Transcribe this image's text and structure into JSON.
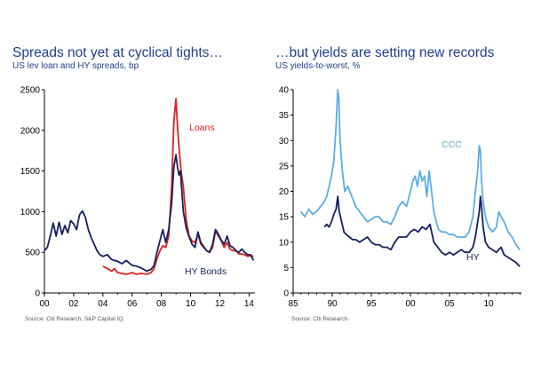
{
  "chart_data": [
    {
      "type": "line",
      "title": "Spreads not yet at cyclical tights…",
      "subtitle": "US lev loan and HY spreads, bp",
      "source": "Source: Citi Research, S&P Capital IQ.",
      "xlabel": "",
      "ylabel": "",
      "x_ticks": [
        "00",
        "02",
        "04",
        "06",
        "08",
        "10",
        "12",
        "14"
      ],
      "x_tick_values": [
        2000,
        2002,
        2004,
        2006,
        2008,
        2010,
        2012,
        2014
      ],
      "xlim": [
        2000,
        2014.4
      ],
      "y_ticks": [
        "0",
        "500",
        "1000",
        "1500",
        "2000",
        "2500"
      ],
      "y_tick_values": [
        0,
        500,
        1000,
        1500,
        2000,
        2500
      ],
      "ylim": [
        0,
        2500
      ],
      "grid": false,
      "legend": "inline labels",
      "series": [
        {
          "name": "HY Bonds",
          "color": "#14205e",
          "x": [
            2000.0,
            2000.2,
            2000.4,
            2000.6,
            2000.8,
            2001.0,
            2001.2,
            2001.4,
            2001.6,
            2001.8,
            2002.0,
            2002.2,
            2002.4,
            2002.6,
            2002.8,
            2003.0,
            2003.2,
            2003.4,
            2003.6,
            2003.8,
            2004.0,
            2004.3,
            2004.6,
            2005.0,
            2005.3,
            2005.6,
            2006.0,
            2006.3,
            2006.6,
            2007.0,
            2007.3,
            2007.5,
            2007.7,
            2007.9,
            2008.1,
            2008.3,
            2008.5,
            2008.7,
            2008.85,
            2009.0,
            2009.1,
            2009.2,
            2009.3,
            2009.5,
            2009.7,
            2009.9,
            2010.1,
            2010.3,
            2010.5,
            2010.7,
            2010.9,
            2011.1,
            2011.3,
            2011.5,
            2011.7,
            2011.9,
            2012.1,
            2012.3,
            2012.5,
            2012.7,
            2012.9,
            2013.1,
            2013.3,
            2013.5,
            2013.7,
            2013.9,
            2014.1,
            2014.3
          ],
          "values": [
            520,
            560,
            700,
            860,
            700,
            870,
            720,
            830,
            740,
            890,
            850,
            780,
            960,
            1010,
            930,
            780,
            680,
            600,
            520,
            470,
            450,
            470,
            410,
            390,
            360,
            400,
            340,
            330,
            310,
            270,
            290,
            340,
            500,
            640,
            780,
            620,
            780,
            1100,
            1550,
            1700,
            1550,
            1450,
            1500,
            1000,
            800,
            690,
            600,
            560,
            750,
            620,
            570,
            520,
            500,
            600,
            780,
            720,
            650,
            600,
            700,
            580,
            560,
            520,
            500,
            540,
            500,
            470,
            470,
            400
          ]
        },
        {
          "name": "Loans",
          "color": "#e0201c",
          "x": [
            2004.0,
            2004.2,
            2004.4,
            2004.6,
            2004.8,
            2005.0,
            2005.3,
            2005.6,
            2006.0,
            2006.3,
            2006.6,
            2007.0,
            2007.3,
            2007.5,
            2007.7,
            2007.9,
            2008.1,
            2008.3,
            2008.5,
            2008.7,
            2008.85,
            2009.0,
            2009.1,
            2009.2,
            2009.35,
            2009.5,
            2009.7,
            2009.9,
            2010.1,
            2010.3,
            2010.5,
            2010.7,
            2010.9,
            2011.1,
            2011.3,
            2011.5,
            2011.7,
            2011.9,
            2012.1,
            2012.3,
            2012.5,
            2012.7,
            2012.9,
            2013.1,
            2013.3,
            2013.5,
            2013.7,
            2013.9,
            2014.1,
            2014.3
          ],
          "values": [
            330,
            310,
            290,
            270,
            300,
            250,
            240,
            230,
            250,
            230,
            240,
            230,
            250,
            300,
            420,
            520,
            580,
            560,
            700,
            1300,
            2100,
            2390,
            2050,
            1800,
            1500,
            1300,
            900,
            700,
            640,
            620,
            720,
            600,
            560,
            520,
            500,
            560,
            760,
            700,
            640,
            560,
            620,
            540,
            520,
            520,
            480,
            480,
            470,
            450,
            460,
            450
          ]
        }
      ],
      "annotations": [
        "Loans",
        "HY Bonds"
      ]
    },
    {
      "type": "line",
      "title": "…but yields are setting new records",
      "subtitle": "US yields-to-worst, %",
      "source": "Source: Citi Research.",
      "xlabel": "",
      "ylabel": "",
      "x_ticks": [
        "85",
        "90",
        "95",
        "00",
        "05",
        "10"
      ],
      "x_tick_values": [
        1985,
        1990,
        1995,
        2000,
        2005,
        2010
      ],
      "xlim": [
        1985,
        2014.2
      ],
      "y_ticks": [
        "0",
        "5",
        "10",
        "15",
        "20",
        "25",
        "30",
        "35",
        "40"
      ],
      "y_tick_values": [
        0,
        5,
        10,
        15,
        20,
        25,
        30,
        35,
        40
      ],
      "ylim": [
        0,
        40
      ],
      "grid": false,
      "legend": "inline labels",
      "series": [
        {
          "name": "CCC",
          "color": "#5aaee6",
          "x": [
            1986.0,
            1986.5,
            1987.0,
            1987.5,
            1988.0,
            1988.5,
            1989.0,
            1989.3,
            1989.6,
            1989.9,
            1990.2,
            1990.5,
            1990.7,
            1990.85,
            1991.0,
            1991.3,
            1991.6,
            1992.0,
            1992.5,
            1993.0,
            1993.5,
            1994.0,
            1994.5,
            1995.0,
            1995.5,
            1996.0,
            1996.5,
            1997.0,
            1997.5,
            1998.0,
            1998.5,
            1999.0,
            1999.5,
            2000.0,
            2000.3,
            2000.6,
            2000.9,
            2001.2,
            2001.5,
            2001.8,
            2002.1,
            2002.4,
            2002.7,
            2003.0,
            2003.3,
            2003.6,
            2004.0,
            2004.5,
            2005.0,
            2005.5,
            2006.0,
            2006.5,
            2007.0,
            2007.5,
            2008.0,
            2008.3,
            2008.6,
            2008.8,
            2008.95,
            2009.1,
            2009.3,
            2009.6,
            2010.0,
            2010.5,
            2011.0,
            2011.3,
            2011.6,
            2012.0,
            2012.5,
            2013.0,
            2013.5,
            2014.0
          ],
          "values": [
            16,
            15,
            16.5,
            15.5,
            16,
            17,
            18,
            19,
            21,
            23,
            26,
            33,
            40,
            38,
            30,
            24,
            20,
            21,
            19,
            17,
            16,
            15,
            14,
            14.5,
            15,
            15,
            14,
            14,
            13.5,
            15,
            17,
            18,
            17,
            20,
            22,
            23,
            21,
            24,
            22,
            23,
            19,
            24,
            20,
            16,
            14,
            12.5,
            12,
            12,
            11.5,
            11.5,
            11,
            11,
            11,
            12,
            15,
            20,
            24,
            29,
            28,
            22,
            18,
            15,
            13,
            12,
            13,
            16,
            15,
            14,
            12,
            11,
            9.5,
            8.5
          ]
        },
        {
          "name": "HY",
          "color": "#14205e",
          "x": [
            1989.0,
            1989.3,
            1989.6,
            1989.9,
            1990.2,
            1990.5,
            1990.7,
            1990.9,
            1991.2,
            1991.5,
            1991.8,
            1992.2,
            1992.6,
            1993.0,
            1993.5,
            1994.0,
            1994.5,
            1995.0,
            1995.5,
            1996.0,
            1996.5,
            1997.0,
            1997.5,
            1998.0,
            1998.5,
            1999.0,
            1999.5,
            2000.0,
            2000.5,
            2001.0,
            2001.5,
            2002.0,
            2002.5,
            2003.0,
            2003.5,
            2004.0,
            2004.5,
            2005.0,
            2005.5,
            2006.0,
            2006.5,
            2007.0,
            2007.5,
            2008.0,
            2008.3,
            2008.6,
            2008.8,
            2008.95,
            2009.1,
            2009.3,
            2009.6,
            2010.0,
            2010.5,
            2011.0,
            2011.3,
            2011.6,
            2012.0,
            2012.5,
            2013.0,
            2013.5,
            2014.0
          ],
          "values": [
            13,
            13.5,
            13,
            14,
            15.5,
            16.5,
            19,
            16,
            14,
            12,
            11.5,
            11,
            10.5,
            10.5,
            10,
            10.5,
            11,
            10,
            9.5,
            9.5,
            9,
            9,
            8.5,
            10,
            11,
            11,
            11,
            12,
            12.5,
            12,
            13,
            12.5,
            13.5,
            10,
            9,
            8,
            7.5,
            8,
            7.5,
            8,
            8.5,
            8,
            8,
            9,
            11,
            14,
            16,
            19,
            17,
            13,
            10,
            9,
            8.5,
            8,
            8.5,
            9,
            7.5,
            7,
            6.5,
            6,
            5.2
          ]
        }
      ],
      "annotations": [
        "CCC",
        "HY"
      ]
    }
  ]
}
